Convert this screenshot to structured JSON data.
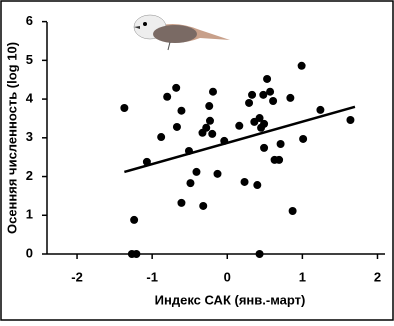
{
  "chart_data": {
    "type": "scatter",
    "x_label": "Индекс САК (янв.-март)",
    "y_label": "Осенняя численность (log 10)",
    "xlim": [
      -2.4,
      2.1
    ],
    "ylim": [
      0,
      6.3
    ],
    "xticks": [
      -2,
      -1,
      0,
      1,
      2
    ],
    "yticks": [
      0,
      1,
      2,
      3,
      4,
      5,
      6
    ],
    "color": "#000000",
    "series": [
      {
        "color": "#000000",
        "x": [
          -1.37,
          -1.24,
          -1.27,
          -1.21,
          -1.07,
          -0.88,
          -0.8,
          -0.68,
          -0.67,
          -0.61,
          -0.61,
          -0.51,
          -0.49,
          -0.41,
          -0.33,
          -0.32,
          -0.28,
          -0.24,
          -0.23,
          -0.2,
          -0.19,
          -0.13,
          -0.04,
          0.16,
          0.23,
          0.29,
          0.33,
          0.36,
          0.4,
          0.43,
          0.45,
          0.48,
          0.43,
          0.49,
          0.53,
          0.49,
          0.57,
          0.61,
          0.63,
          0.69,
          0.71,
          0.84,
          0.87,
          0.99,
          1.01,
          1.24,
          1.64
        ],
        "values": [
          3.77,
          0.88,
          0,
          0,
          2.38,
          3.02,
          4.06,
          4.29,
          3.28,
          3.7,
          1.32,
          2.66,
          1.83,
          2.12,
          3.13,
          1.24,
          3.26,
          3.82,
          3.44,
          3.1,
          4.19,
          2.07,
          2.92,
          3.31,
          1.86,
          3.9,
          4.11,
          3.41,
          1.78,
          3.51,
          3.26,
          4.11,
          0,
          3.36,
          4.52,
          2.74,
          4.19,
          3.95,
          2.43,
          2.43,
          2.84,
          4.03,
          1.11,
          4.86,
          2.97,
          3.72,
          3.46
        ]
      }
    ],
    "trendline": {
      "x": [
        -1.37,
        1.7
      ],
      "values": [
        2.12,
        3.8
      ]
    }
  }
}
